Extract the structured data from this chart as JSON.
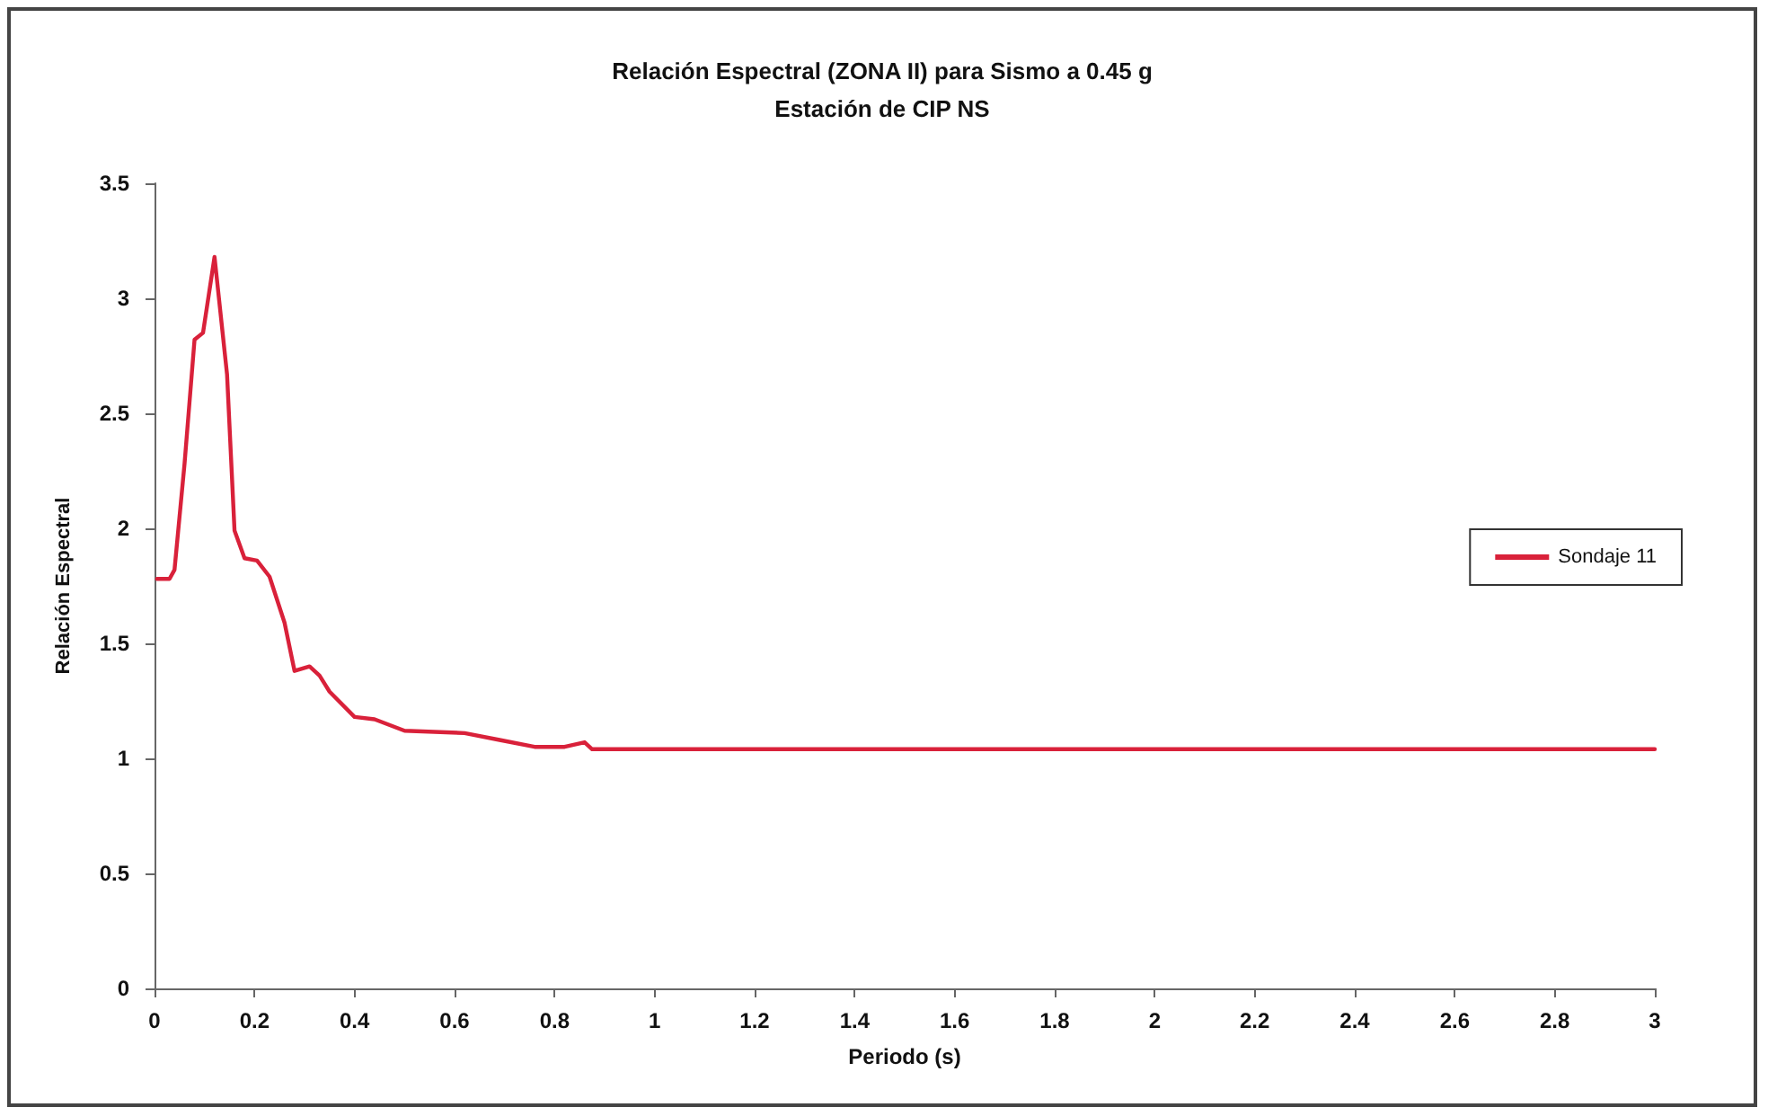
{
  "chart_data": {
    "type": "line",
    "title": "Relación Espectral (ZONA II) para Sismo a 0.45 g",
    "subtitle": "Estación de CIP NS",
    "xlabel": "Periodo (s)",
    "ylabel": "Relación Espectral",
    "xlim": [
      0,
      3
    ],
    "xticks": [
      0,
      0.2,
      0.4,
      0.6,
      0.8,
      1,
      1.2,
      1.4,
      1.6,
      1.8,
      2,
      2.2,
      2.4,
      2.6,
      2.8,
      3
    ],
    "ylim": [
      0,
      3.5
    ],
    "yticks": [
      0,
      0.5,
      1,
      1.5,
      2,
      2.5,
      3,
      3.5
    ],
    "grid": false,
    "legend": "right",
    "marker": "none",
    "line_style": "solid",
    "series": [
      {
        "name": "Sondaje 11",
        "color": "#d9213a",
        "x": [
          0.005,
          0.03,
          0.04,
          0.06,
          0.08,
          0.097,
          0.12,
          0.145,
          0.16,
          0.18,
          0.205,
          0.23,
          0.26,
          0.28,
          0.31,
          0.33,
          0.35,
          0.4,
          0.44,
          0.5,
          0.62,
          0.69,
          0.76,
          0.82,
          0.86,
          0.875,
          3
        ],
        "values": [
          1.78,
          1.78,
          1.82,
          2.28,
          2.82,
          2.85,
          3.18,
          2.67,
          1.99,
          1.87,
          1.86,
          1.79,
          1.59,
          1.38,
          1.4,
          1.36,
          1.29,
          1.18,
          1.17,
          1.12,
          1.11,
          1.08,
          1.05,
          1.05,
          1.07,
          1.04,
          1.04
        ]
      }
    ]
  }
}
